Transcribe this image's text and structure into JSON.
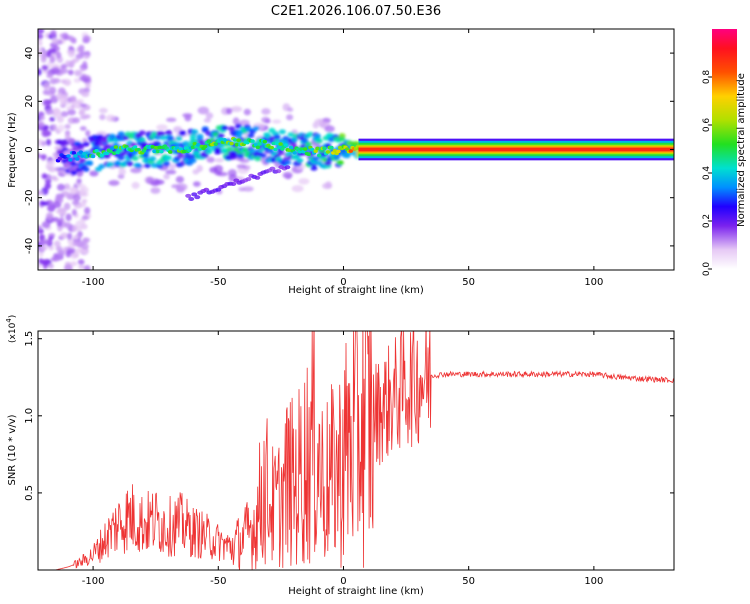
{
  "title": "C2E1.2026.106.07.50.E36",
  "colors": {
    "snr_line": "#ee3333",
    "axis": "#000000",
    "background": "#ffffff"
  },
  "chart_data": [
    {
      "type": "heatmap",
      "xlabel": "Height of straight line (km)",
      "ylabel": "Frequency (Hz)",
      "xlim": [
        -122,
        132
      ],
      "ylim": [
        -50,
        50
      ],
      "xticks": [
        -100,
        -50,
        0,
        50,
        100
      ],
      "yticks": [
        -40,
        -20,
        0,
        20,
        40
      ],
      "xtick_labels": [
        "-100",
        "-50",
        "0",
        "50",
        "100"
      ],
      "ytick_labels": [
        "-40",
        "-20",
        "0",
        "20",
        "40"
      ],
      "ridge": [
        {
          "x": -110,
          "y": -3,
          "amp": 0.3
        },
        {
          "x": -100,
          "y": -2,
          "amp": 0.45
        },
        {
          "x": -90,
          "y": 0,
          "amp": 0.5
        },
        {
          "x": -80,
          "y": 0,
          "amp": 0.55
        },
        {
          "x": -70,
          "y": 0,
          "amp": 0.5
        },
        {
          "x": -60,
          "y": 1,
          "amp": 0.5
        },
        {
          "x": -50,
          "y": 3,
          "amp": 0.55
        },
        {
          "x": -40,
          "y": 3,
          "amp": 0.55
        },
        {
          "x": -30,
          "y": 2,
          "amp": 0.5
        },
        {
          "x": -20,
          "y": 0,
          "amp": 0.5
        },
        {
          "x": -10,
          "y": -1,
          "amp": 0.55
        },
        {
          "x": 0,
          "y": 0,
          "amp": 0.65
        },
        {
          "x": 10,
          "y": 0,
          "amp": 0.9
        },
        {
          "x": 50,
          "y": 0,
          "amp": 0.95
        },
        {
          "x": 100,
          "y": 0,
          "amp": 0.95
        },
        {
          "x": 132,
          "y": 0,
          "amp": 0.95
        }
      ],
      "colorbar": {
        "label": "Normalized spectral amplitude",
        "ticks": [
          0.0,
          0.2,
          0.4,
          0.6,
          0.8
        ],
        "tick_labels": [
          "0.0",
          "0.2",
          "0.4",
          "0.6",
          "0.8"
        ],
        "range": [
          0,
          1
        ]
      }
    },
    {
      "type": "line",
      "xlabel": "Height of straight line (km)",
      "ylabel": "SNR (10 * v/v)",
      "scale_label": "(x10",
      "scale_exponent": "4",
      "scale_close": ")",
      "xlim": [
        -122,
        132
      ],
      "ylim": [
        0,
        1.55
      ],
      "xticks": [
        -100,
        -50,
        0,
        50,
        100
      ],
      "yticks": [
        0.5,
        1.0,
        1.5
      ],
      "xtick_labels": [
        "-100",
        "-50",
        "0",
        "50",
        "100"
      ],
      "ytick_labels": [
        "0.5",
        "1.0",
        "1.5"
      ],
      "series": [
        {
          "name": "SNR",
          "x": [
            -122,
            -115,
            -110,
            -105,
            -100,
            -95,
            -90,
            -85,
            -80,
            -75,
            -70,
            -65,
            -60,
            -55,
            -50,
            -45,
            -40,
            -35,
            -32,
            -30,
            -28,
            -25,
            -22,
            -20,
            -18,
            -15,
            -12,
            -10,
            -8,
            -5,
            -2,
            0,
            3,
            6,
            9,
            12,
            15,
            20,
            25,
            30,
            35,
            40,
            45,
            50,
            60,
            70,
            80,
            90,
            100,
            110,
            120,
            132
          ],
          "y": [
            0.0,
            0.0,
            0.02,
            0.05,
            0.1,
            0.2,
            0.3,
            0.35,
            0.3,
            0.32,
            0.28,
            0.3,
            0.25,
            0.22,
            0.18,
            0.15,
            0.2,
            0.3,
            0.55,
            0.5,
            0.4,
            0.45,
            0.6,
            0.55,
            0.6,
            0.7,
            0.85,
            0.75,
            0.55,
            0.6,
            0.65,
            0.75,
            0.85,
            0.9,
            0.95,
            1.0,
            1.05,
            1.12,
            1.2,
            1.24,
            1.26,
            1.27,
            1.27,
            1.27,
            1.27,
            1.27,
            1.27,
            1.27,
            1.27,
            1.25,
            1.24,
            1.23
          ]
        }
      ]
    }
  ]
}
